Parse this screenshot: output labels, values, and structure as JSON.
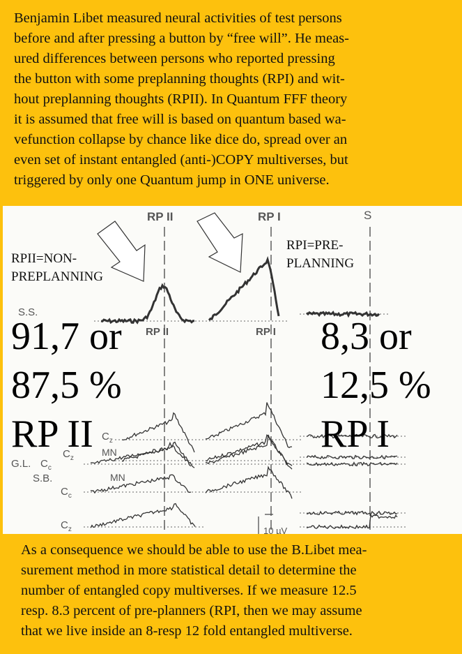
{
  "top_text": {
    "lines": [
      "Benjamin Libet  measured neural activities of test persons",
      "before and after pressing a button by “free will”.  He meas-",
      "ured differences between persons who reported pressing",
      "the button with some preplanning thoughts (RPI) and wit-",
      "hout preplanning thoughts (RPII).  In Quantum FFF theory",
      "it is assumed that free will is based on quantum based wa-",
      "vefunction collapse by chance like dice do, spread over an",
      "even set of instant entangled (anti-)COPY multiverses, but",
      "triggered by only one Quantum  jump in ONE universe."
    ]
  },
  "figure": {
    "column_labels": {
      "rp2_top": "RP II",
      "rp1_top": "RP I",
      "s": "S",
      "rp2_mid": "RP II",
      "rp1_mid": "RP I"
    },
    "subjects": {
      "ss": "S.S.",
      "gl": "G.L.",
      "sb": "S.B."
    },
    "channels": {
      "cz": "C",
      "cz_sub": "z",
      "cc": "C",
      "cc_sub": "c"
    },
    "mn": "MN",
    "scale": "10 µV",
    "annotations": {
      "rp2_line1": "RPII=NON-",
      "rp2_line2": "PREPLANNING",
      "rp1_line1": "RPI=PRE-",
      "rp1_line2": "PLANNING"
    },
    "overlay": {
      "left_1": "91,7 or",
      "left_2": "87,5 %",
      "left_3": "RP II",
      "right_1": "8,3 or",
      "right_2": "12,5 %",
      "right_3": "RP I"
    }
  },
  "bottom_text": {
    "lines": [
      "As a consequence we should be able to use the B.Libet mea-",
      "surement method in more statistical detail to determine the",
      "number of entangled copy multiverses.  If we measure 12.5",
      "resp. 8.3 percent of pre-planners (RPI, then we may assume",
      "that we live inside an 8-resp 12 fold entangled multiverse."
    ]
  },
  "colors": {
    "background": "#fdc10d",
    "figure_bg": "#fbfbf8",
    "text": "#111111"
  }
}
